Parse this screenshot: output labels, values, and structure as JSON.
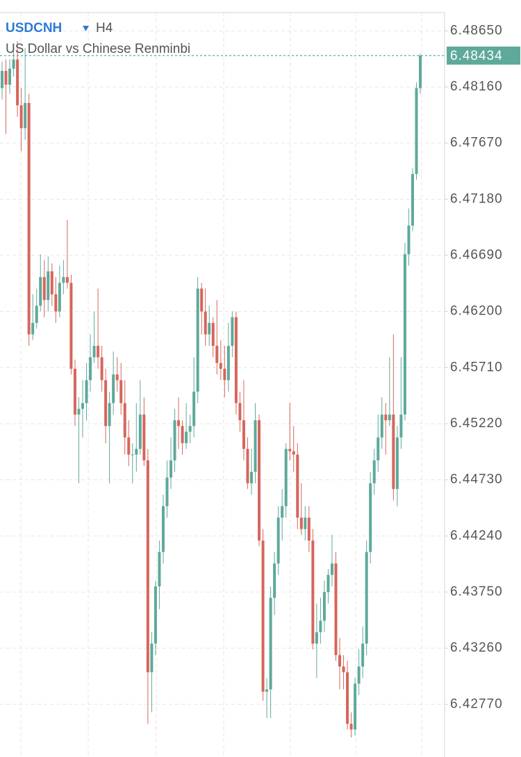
{
  "chart_data": {
    "type": "candlestick",
    "symbol": "USDCNH",
    "timeframe": "H4",
    "title": "US Dollar vs Chinese Renminbi",
    "up_color": "#5ea99a",
    "down_color": "#d6665b",
    "grid": true,
    "ylim": [
      6.4231,
      6.4881
    ],
    "yticks": [
      {
        "value": 6.4865,
        "label": "6.48650"
      },
      {
        "value": 6.4816,
        "label": "6.48160"
      },
      {
        "value": 6.4767,
        "label": "6.47670"
      },
      {
        "value": 6.4718,
        "label": "6.47180"
      },
      {
        "value": 6.4669,
        "label": "6.46690"
      },
      {
        "value": 6.462,
        "label": "6.46200"
      },
      {
        "value": 6.4571,
        "label": "6.45710"
      },
      {
        "value": 6.4522,
        "label": "6.45220"
      },
      {
        "value": 6.4473,
        "label": "6.44730"
      },
      {
        "value": 6.4424,
        "label": "6.44240"
      },
      {
        "value": 6.4375,
        "label": "6.43750"
      },
      {
        "value": 6.4326,
        "label": "6.43260"
      },
      {
        "value": 6.4277,
        "label": "6.42770"
      }
    ],
    "last_price": 6.48434,
    "open": [
      6.4815,
      6.483,
      6.4818,
      6.4832,
      6.484,
      6.48,
      6.478,
      6.4802,
      6.46,
      6.461,
      6.4625,
      6.465,
      6.463,
      6.4655,
      6.4635,
      6.462,
      6.4645,
      6.465,
      6.4645,
      6.457,
      6.453,
      6.4535,
      6.454,
      6.456,
      6.458,
      6.459,
      6.458,
      6.456,
      6.452,
      6.454,
      6.4565,
      6.456,
      6.454,
      6.451,
      6.4495,
      6.4495,
      6.45,
      6.453,
      6.449,
      6.4305,
      6.433,
      6.438,
      6.441,
      6.445,
      6.4475,
      6.449,
      6.4525,
      6.452,
      6.4505,
      6.4515,
      6.452,
      6.455,
      6.464,
      6.462,
      6.46,
      6.461,
      6.459,
      6.4575,
      6.457,
      6.456,
      6.459,
      6.4615,
      6.454,
      6.4525,
      6.45,
      6.447,
      6.448,
      6.4525,
      6.442,
      6.4288,
      6.429,
      6.437,
      6.44,
      6.444,
      6.445,
      6.45,
      6.4498,
      6.4495,
      6.444,
      6.443,
      6.444,
      6.442,
      6.433,
      6.434,
      6.435,
      6.4375,
      6.439,
      6.44,
      6.432,
      6.431,
      6.4305,
      6.426,
      6.4255,
      6.4295,
      6.431,
      6.433,
      6.441,
      6.447,
      6.449,
      6.451,
      6.453,
      6.4525,
      6.453,
      6.4465,
      6.451,
      6.453,
      6.467,
      6.4695,
      6.474,
      6.4815
    ],
    "high": [
      6.4838,
      6.484,
      6.484,
      6.485,
      6.4856,
      6.4815,
      6.485,
      6.481,
      6.4635,
      6.464,
      6.467,
      6.4665,
      6.4668,
      6.4662,
      6.465,
      6.466,
      6.4665,
      6.47,
      6.4652,
      6.4578,
      6.4545,
      6.456,
      6.4575,
      6.46,
      6.462,
      6.464,
      6.459,
      6.457,
      6.455,
      6.4585,
      6.458,
      6.4575,
      6.456,
      6.4525,
      6.4505,
      6.454,
      6.456,
      6.4545,
      6.45,
      6.434,
      6.4385,
      6.442,
      6.446,
      6.449,
      6.451,
      6.4535,
      6.4545,
      6.4525,
      6.454,
      6.453,
      6.458,
      6.465,
      6.4645,
      6.464,
      6.4625,
      6.4615,
      6.463,
      6.4595,
      6.459,
      6.461,
      6.462,
      6.462,
      6.455,
      6.456,
      6.451,
      6.45,
      6.454,
      6.453,
      6.443,
      6.43,
      6.438,
      6.441,
      6.445,
      6.4465,
      6.4505,
      6.454,
      6.452,
      6.4505,
      6.447,
      6.445,
      6.445,
      6.443,
      6.4365,
      6.437,
      6.4385,
      6.4395,
      6.4425,
      6.441,
      6.4335,
      6.432,
      6.4315,
      6.427,
      6.43,
      6.4325,
      6.4345,
      6.442,
      6.448,
      6.45,
      6.453,
      6.4545,
      6.454,
      6.458,
      6.46,
      6.452,
      6.458,
      6.468,
      6.471,
      6.4745,
      6.482,
      6.4845
    ],
    "low": [
      6.4805,
      6.4775,
      6.481,
      6.4825,
      6.479,
      6.476,
      6.477,
      6.459,
      6.4595,
      6.4605,
      6.462,
      6.4615,
      6.462,
      6.4625,
      6.461,
      6.4615,
      6.4635,
      6.464,
      6.4565,
      6.452,
      6.447,
      6.451,
      6.4525,
      6.455,
      6.4575,
      6.457,
      6.455,
      6.4505,
      6.447,
      6.453,
      6.455,
      6.453,
      6.4495,
      6.4485,
      6.447,
      6.448,
      6.4495,
      6.4485,
      6.426,
      6.427,
      6.432,
      6.436,
      6.44,
      6.444,
      6.4465,
      6.448,
      6.45,
      6.4495,
      6.45,
      6.4505,
      6.451,
      6.454,
      6.46,
      6.459,
      6.459,
      6.458,
      6.4565,
      6.456,
      6.4545,
      6.455,
      6.458,
      6.453,
      6.4515,
      6.449,
      6.4465,
      6.446,
      6.447,
      6.4415,
      6.428,
      6.4265,
      6.4265,
      6.4355,
      6.439,
      6.442,
      6.444,
      6.449,
      6.448,
      6.443,
      6.4425,
      6.442,
      6.441,
      6.4325,
      6.43,
      6.433,
      6.434,
      6.4365,
      6.438,
      6.4315,
      6.429,
      6.429,
      6.4255,
      6.4248,
      6.425,
      6.4285,
      6.43,
      6.432,
      6.44,
      6.446,
      6.448,
      6.45,
      6.4495,
      6.452,
      6.4455,
      6.445,
      6.45,
      6.4525,
      6.466,
      6.469,
      6.4735,
      6.481
    ],
    "close": [
      6.483,
      6.4818,
      6.4832,
      6.484,
      6.48,
      6.478,
      6.4802,
      6.46,
      6.461,
      6.4625,
      6.465,
      6.463,
      6.4655,
      6.4635,
      6.462,
      6.4645,
      6.465,
      6.4645,
      6.457,
      6.453,
      6.4535,
      6.454,
      6.456,
      6.458,
      6.459,
      6.458,
      6.456,
      6.452,
      6.454,
      6.4565,
      6.456,
      6.454,
      6.451,
      6.4495,
      6.4495,
      6.45,
      6.453,
      6.449,
      6.4305,
      6.433,
      6.438,
      6.441,
      6.445,
      6.4475,
      6.449,
      6.4525,
      6.452,
      6.4505,
      6.4515,
      6.452,
      6.455,
      6.464,
      6.462,
      6.46,
      6.461,
      6.459,
      6.4575,
      6.457,
      6.456,
      6.459,
      6.4615,
      6.454,
      6.4525,
      6.45,
      6.447,
      6.448,
      6.4525,
      6.442,
      6.4288,
      6.429,
      6.437,
      6.44,
      6.444,
      6.445,
      6.45,
      6.4498,
      6.4495,
      6.444,
      6.443,
      6.444,
      6.442,
      6.433,
      6.434,
      6.435,
      6.4375,
      6.439,
      6.44,
      6.432,
      6.431,
      6.4305,
      6.426,
      6.4255,
      6.4295,
      6.431,
      6.433,
      6.441,
      6.447,
      6.449,
      6.451,
      6.453,
      6.4525,
      6.453,
      6.4465,
      6.451,
      6.453,
      6.467,
      6.4695,
      6.474,
      6.4815,
      6.48434
    ]
  }
}
